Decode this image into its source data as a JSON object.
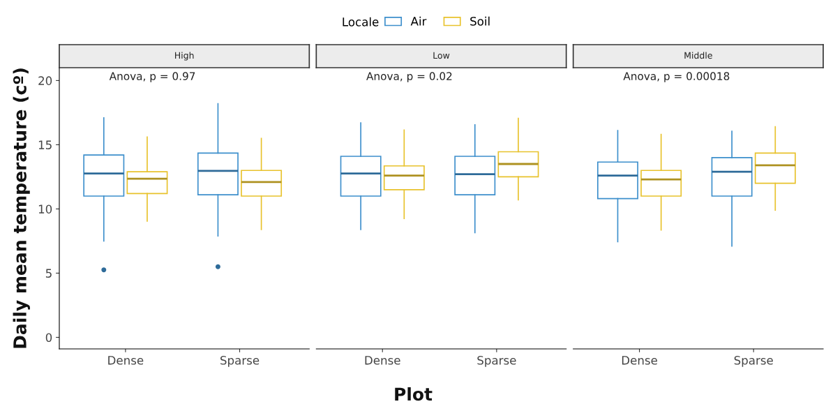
{
  "chart_data": [
    {
      "type": "box",
      "title": "High",
      "ylabel": "Daily mean temperature (cº)",
      "legend_title": "Locale",
      "legend": "top",
      "grid": false,
      "categories": [
        "Dense",
        "Sparse"
      ],
      "ylim": [
        -0.9,
        21
      ],
      "yticks": [
        0,
        5,
        10,
        15,
        20
      ],
      "annotations": [
        "Anova, p = 0.97"
      ],
      "series": [
        {
          "name": "Air",
          "color": "#3d8fcc",
          "boxes": [
            {
              "low": 7.5,
              "q1": 11.0,
              "median": 12.76,
              "q3": 14.2,
              "high": 17.1,
              "outliers": [
                5.25
              ]
            },
            {
              "low": 7.9,
              "q1": 11.1,
              "median": 12.97,
              "q3": 14.35,
              "high": 18.2,
              "outliers": [
                5.5
              ]
            }
          ]
        },
        {
          "name": "Soil",
          "color": "#e8c22c",
          "boxes": [
            {
              "low": 9.05,
              "q1": 11.2,
              "median": 12.35,
              "q3": 12.9,
              "high": 15.6
            },
            {
              "low": 8.4,
              "q1": 11.0,
              "median": 12.1,
              "q3": 13.0,
              "high": 15.5
            }
          ]
        }
      ]
    },
    {
      "type": "box",
      "title": "Low",
      "xlabel": "Plot",
      "grid": false,
      "tick_labels": "x",
      "categories": [
        "Dense",
        "Sparse"
      ],
      "ylim": [
        -0.9,
        21
      ],
      "annotations": [
        "Anova, p = 0.02"
      ],
      "series": [
        {
          "color": "#3d8fcc",
          "boxes": [
            {
              "low": 8.4,
              "q1": 11.0,
              "median": 12.76,
              "q3": 14.1,
              "high": 16.7
            },
            {
              "low": 8.15,
              "q1": 11.1,
              "median": 12.7,
              "q3": 14.1,
              "high": 16.55
            }
          ]
        },
        {
          "color": "#e8c22c",
          "boxes": [
            {
              "low": 9.25,
              "q1": 11.5,
              "median": 12.6,
              "q3": 13.35,
              "high": 16.15
            },
            {
              "low": 10.7,
              "q1": 12.5,
              "median": 13.5,
              "q3": 14.45,
              "high": 17.05
            }
          ]
        }
      ]
    },
    {
      "type": "box",
      "title": "Middle",
      "grid": false,
      "tick_labels": "x",
      "categories": [
        "Dense",
        "Sparse"
      ],
      "ylim": [
        -0.9,
        21
      ],
      "annotations": [
        "Anova, p = 0.00018"
      ],
      "series": [
        {
          "color": "#3d8fcc",
          "boxes": [
            {
              "low": 7.45,
              "q1": 10.8,
              "median": 12.6,
              "q3": 13.65,
              "high": 16.1
            },
            {
              "low": 7.1,
              "q1": 11.0,
              "median": 12.9,
              "q3": 14.0,
              "high": 16.05
            }
          ]
        },
        {
          "color": "#e8c22c",
          "boxes": [
            {
              "low": 8.35,
              "q1": 11.0,
              "median": 12.3,
              "q3": 13.0,
              "high": 15.8
            },
            {
              "low": 9.9,
              "q1": 12.0,
              "median": 13.4,
              "q3": 14.35,
              "high": 16.4
            }
          ]
        }
      ]
    }
  ]
}
